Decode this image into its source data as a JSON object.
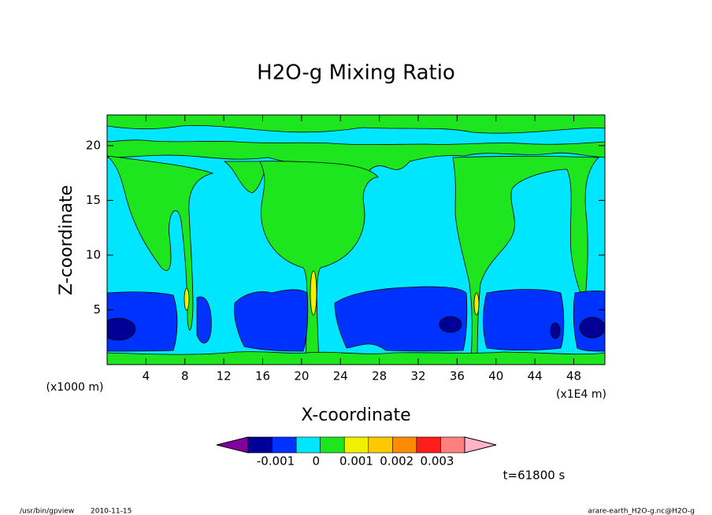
{
  "chart_data": {
    "type": "contour",
    "title": "H2O-g Mixing Ratio",
    "xlabel": "X-coordinate",
    "ylabel": "Z-coordinate",
    "x_unit": "(x1000 m)",
    "x_scale": "(x1E4 m)",
    "annotation": "t=61800 s",
    "footer_left": [
      "/usr/bin/gpview",
      "2010-11-15"
    ],
    "footer_right": "arare-earth_H2O-g.nc@H2O-g",
    "xlim": [
      0,
      51.2
    ],
    "ylim": [
      0,
      22.8
    ],
    "xticks": [
      4,
      8,
      12,
      16,
      20,
      24,
      28,
      32,
      36,
      40,
      44,
      48
    ],
    "yticks": [
      5,
      10,
      15,
      20
    ],
    "colorbar": {
      "colors": [
        "#8000a0",
        "#000096",
        "#0032ff",
        "#00e6ff",
        "#1ee61e",
        "#f0f000",
        "#ffc800",
        "#ff8c00",
        "#ff1e1e",
        "#ff8080",
        "#ffb4c8"
      ],
      "ticks": [
        -0.001,
        0,
        0.001,
        0.002,
        0.003
      ]
    }
  }
}
